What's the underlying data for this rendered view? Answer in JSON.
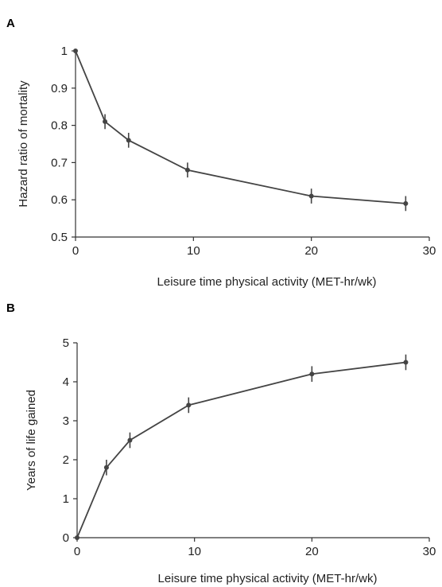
{
  "chart_data": [
    {
      "type": "line",
      "panel_label": "A",
      "title": "",
      "xlabel": "Leisure time physical activity (MET-hr/wk)",
      "ylabel": "Hazard ratio of mortality",
      "xlim": [
        0,
        30
      ],
      "ylim": [
        0.5,
        1.0
      ],
      "xticks": [
        0,
        10,
        20,
        30
      ],
      "yticks": [
        0.5,
        0.6,
        0.7,
        0.8,
        0.9,
        1.0
      ],
      "ytick_labels": [
        "0.5",
        "0.6",
        "0.7",
        "0.8",
        "0.9",
        "1"
      ],
      "grid": false,
      "series": [
        {
          "x": [
            0,
            2.5,
            4.5,
            9.5,
            20,
            28
          ],
          "y": [
            1.0,
            0.81,
            0.76,
            0.68,
            0.61,
            0.59
          ],
          "err": [
            0,
            0.02,
            0.02,
            0.02,
            0.02,
            0.02
          ]
        }
      ]
    },
    {
      "type": "line",
      "panel_label": "B",
      "title": "",
      "xlabel": "Leisure time physical activity (MET-hr/wk)",
      "ylabel": "Years of life gained",
      "xlim": [
        0,
        30
      ],
      "ylim": [
        0,
        5
      ],
      "xticks": [
        0,
        10,
        20,
        30
      ],
      "yticks": [
        0,
        1,
        2,
        3,
        4,
        5
      ],
      "ytick_labels": [
        "0",
        "1",
        "2",
        "3",
        "4",
        "5"
      ],
      "grid": false,
      "series": [
        {
          "x": [
            0,
            2.5,
            4.5,
            9.5,
            20,
            28
          ],
          "y": [
            0,
            1.8,
            2.5,
            3.4,
            4.2,
            4.5
          ],
          "err": [
            0,
            0.2,
            0.2,
            0.2,
            0.2,
            0.2
          ]
        }
      ]
    }
  ]
}
